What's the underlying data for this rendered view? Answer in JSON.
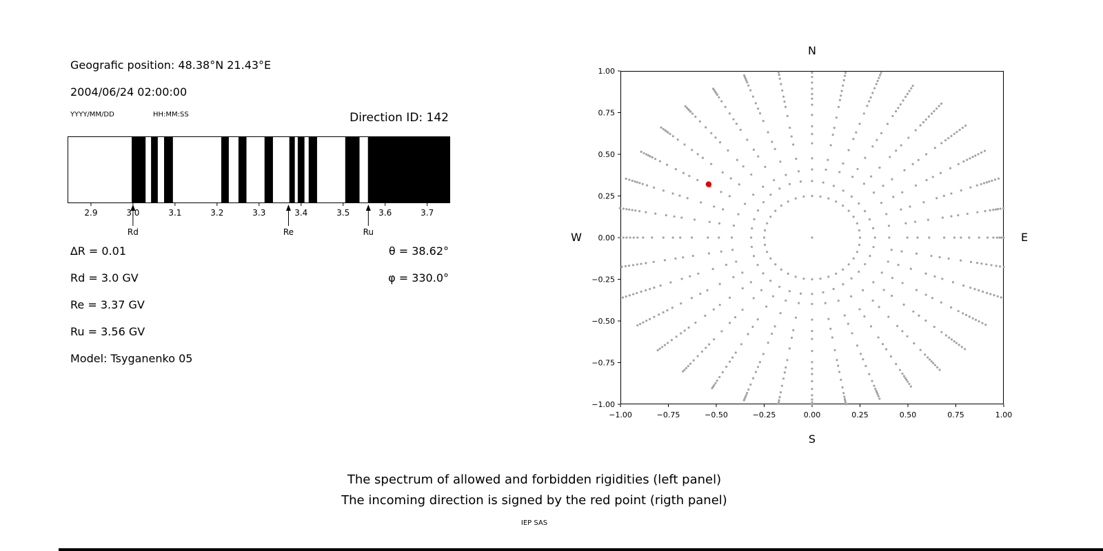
{
  "header": {
    "geo_position": "Geografic position: 48.38°N 21.43°E",
    "datetime": "2004/06/24 02:00:00",
    "date_format": "YYYY/MM/DD",
    "time_format": "HH:MM:SS",
    "direction_id": "Direction ID: 142"
  },
  "left_info": {
    "delta_r": "∆R = 0.01",
    "rd": "Rd = 3.0 GV",
    "re": "Re = 3.37 GV",
    "ru": "Ru = 3.56 GV",
    "model": "Model: Tsyganenko 05",
    "theta": "θ = 38.62°",
    "phi": "φ = 330.0°"
  },
  "captions": {
    "line1": "The spectrum of allowed and forbidden rigidities (left panel)",
    "line2": "The incoming direction is signed by the red point (rigth panel)",
    "credit": "IEP SAS"
  },
  "chart_data": [
    {
      "type": "bar",
      "subtype": "rigidity-spectrum-barcode",
      "x_range": [
        2.846,
        3.753
      ],
      "x_ticks": [
        2.9,
        3.0,
        3.1,
        3.2,
        3.3,
        3.4,
        3.5,
        3.6,
        3.7
      ],
      "black_bands": [
        [
          2.997,
          3.03
        ],
        [
          3.043,
          3.059
        ],
        [
          3.074,
          3.095
        ],
        [
          3.21,
          3.228
        ],
        [
          3.251,
          3.27
        ],
        [
          3.313,
          3.333
        ],
        [
          3.372,
          3.385
        ],
        [
          3.392,
          3.408
        ],
        [
          3.418,
          3.438
        ],
        [
          3.505,
          3.539
        ],
        [
          3.559,
          3.753
        ]
      ],
      "band_color": "#000000",
      "markers": [
        {
          "label": "Rd",
          "x": 3.0
        },
        {
          "label": "Re",
          "x": 3.37
        },
        {
          "label": "Ru",
          "x": 3.56
        }
      ]
    },
    {
      "type": "scatter",
      "xlim": [
        -1.0,
        1.0
      ],
      "ylim": [
        -1.0,
        1.0
      ],
      "x_ticks": [
        -1.0,
        -0.75,
        -0.5,
        -0.25,
        0.0,
        0.25,
        0.5,
        0.75,
        1.0
      ],
      "y_ticks": [
        -1.0,
        -0.75,
        -0.5,
        -0.25,
        0.0,
        0.25,
        0.5,
        0.75,
        1.0
      ],
      "compass_labels": {
        "top": "N",
        "bottom": "S",
        "left": "W",
        "right": "E"
      },
      "grid_dots": {
        "color": "#a3a3a3",
        "center": [
          0,
          0
        ],
        "ring_radius": 0.25,
        "azimuth_step_deg": 10,
        "spoke_radii": [
          0.33,
          0.41,
          0.485,
          0.555,
          0.62,
          0.68,
          0.735,
          0.785,
          0.83,
          0.87,
          0.905,
          0.935,
          0.96,
          0.98,
          0.995,
          1.01,
          1.025,
          1.04
        ]
      },
      "red_point": {
        "x": -0.54,
        "y": 0.32,
        "color": "#e60000"
      }
    }
  ]
}
